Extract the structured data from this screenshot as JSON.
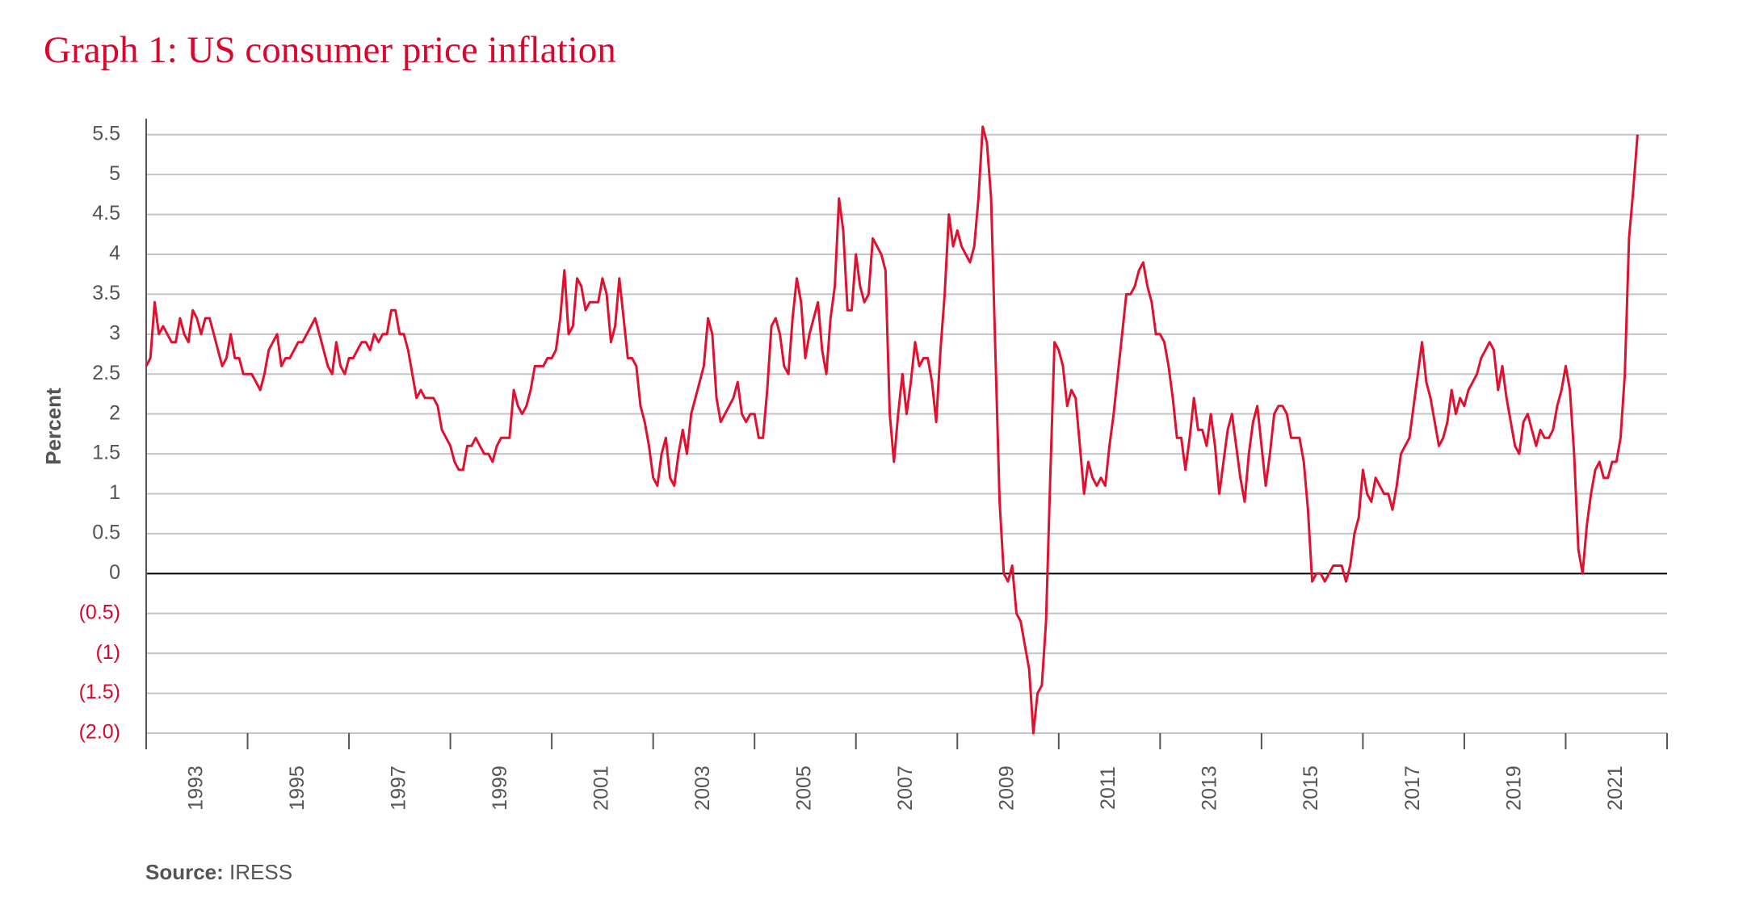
{
  "chart_data": {
    "type": "line",
    "title": "Graph 1: US consumer price inflation",
    "y_label": "Percent",
    "source_label": "Source:",
    "source": "IRESS",
    "color": "#e0102e",
    "zero_line": true,
    "grid": true,
    "xlim": [
      1992,
      2022
    ],
    "xticks": [
      1993,
      1995,
      1997,
      1999,
      2001,
      2003,
      2005,
      2007,
      2009,
      2011,
      2013,
      2015,
      2017,
      2019,
      2021
    ],
    "ylim": [
      -2,
      5.7
    ],
    "yticks": [
      5.5,
      5,
      4.5,
      4,
      3.5,
      3,
      2.5,
      2,
      1.5,
      1,
      0.5,
      0,
      {
        "value": -0.5,
        "label": "(0.5)"
      },
      {
        "value": -1,
        "label": "(1)"
      },
      {
        "value": -1.5,
        "label": "(1.5)"
      },
      {
        "value": -2,
        "label": "(2.0)"
      }
    ],
    "x": [
      1992,
      1992.083,
      1992.167,
      1992.25,
      1992.333,
      1992.417,
      1992.5,
      1992.583,
      1992.667,
      1992.75,
      1992.833,
      1992.917,
      1993,
      1993.083,
      1993.167,
      1993.25,
      1993.333,
      1993.417,
      1993.5,
      1993.583,
      1993.667,
      1993.75,
      1993.833,
      1993.917,
      1994,
      1994.083,
      1994.167,
      1994.25,
      1994.333,
      1994.417,
      1994.5,
      1994.583,
      1994.667,
      1994.75,
      1994.833,
      1994.917,
      1995,
      1995.083,
      1995.167,
      1995.25,
      1995.333,
      1995.417,
      1995.5,
      1995.583,
      1995.667,
      1995.75,
      1995.833,
      1995.917,
      1996,
      1996.083,
      1996.167,
      1996.25,
      1996.333,
      1996.417,
      1996.5,
      1996.583,
      1996.667,
      1996.75,
      1996.833,
      1996.917,
      1997,
      1997.083,
      1997.167,
      1997.25,
      1997.333,
      1997.417,
      1997.5,
      1997.583,
      1997.667,
      1997.75,
      1997.833,
      1997.917,
      1998,
      1998.083,
      1998.167,
      1998.25,
      1998.333,
      1998.417,
      1998.5,
      1998.583,
      1998.667,
      1998.75,
      1998.833,
      1998.917,
      1999,
      1999.083,
      1999.167,
      1999.25,
      1999.333,
      1999.417,
      1999.5,
      1999.583,
      1999.667,
      1999.75,
      1999.833,
      1999.917,
      2000,
      2000.083,
      2000.167,
      2000.25,
      2000.333,
      2000.417,
      2000.5,
      2000.583,
      2000.667,
      2000.75,
      2000.833,
      2000.917,
      2001,
      2001.083,
      2001.167,
      2001.25,
      2001.333,
      2001.417,
      2001.5,
      2001.583,
      2001.667,
      2001.75,
      2001.833,
      2001.917,
      2002,
      2002.083,
      2002.167,
      2002.25,
      2002.333,
      2002.417,
      2002.5,
      2002.583,
      2002.667,
      2002.75,
      2002.833,
      2002.917,
      2003,
      2003.083,
      2003.167,
      2003.25,
      2003.333,
      2003.417,
      2003.5,
      2003.583,
      2003.667,
      2003.75,
      2003.833,
      2003.917,
      2004,
      2004.083,
      2004.167,
      2004.25,
      2004.333,
      2004.417,
      2004.5,
      2004.583,
      2004.667,
      2004.75,
      2004.833,
      2004.917,
      2005,
      2005.083,
      2005.167,
      2005.25,
      2005.333,
      2005.417,
      2005.5,
      2005.583,
      2005.667,
      2005.75,
      2005.833,
      2005.917,
      2006,
      2006.083,
      2006.167,
      2006.25,
      2006.333,
      2006.417,
      2006.5,
      2006.583,
      2006.667,
      2006.75,
      2006.833,
      2006.917,
      2007,
      2007.083,
      2007.167,
      2007.25,
      2007.333,
      2007.417,
      2007.5,
      2007.583,
      2007.667,
      2007.75,
      2007.833,
      2007.917,
      2008,
      2008.083,
      2008.167,
      2008.25,
      2008.333,
      2008.417,
      2008.5,
      2008.583,
      2008.667,
      2008.75,
      2008.833,
      2008.917,
      2009,
      2009.083,
      2009.167,
      2009.25,
      2009.333,
      2009.417,
      2009.5,
      2009.583,
      2009.667,
      2009.75,
      2009.833,
      2009.917,
      2010,
      2010.083,
      2010.167,
      2010.25,
      2010.333,
      2010.417,
      2010.5,
      2010.583,
      2010.667,
      2010.75,
      2010.833,
      2010.917,
      2011,
      2011.083,
      2011.167,
      2011.25,
      2011.333,
      2011.417,
      2011.5,
      2011.583,
      2011.667,
      2011.75,
      2011.833,
      2011.917,
      2012,
      2012.083,
      2012.167,
      2012.25,
      2012.333,
      2012.417,
      2012.5,
      2012.583,
      2012.667,
      2012.75,
      2012.833,
      2012.917,
      2013,
      2013.083,
      2013.167,
      2013.25,
      2013.333,
      2013.417,
      2013.5,
      2013.583,
      2013.667,
      2013.75,
      2013.833,
      2013.917,
      2014,
      2014.083,
      2014.167,
      2014.25,
      2014.333,
      2014.417,
      2014.5,
      2014.583,
      2014.667,
      2014.75,
      2014.833,
      2014.917,
      2015,
      2015.083,
      2015.167,
      2015.25,
      2015.333,
      2015.417,
      2015.5,
      2015.583,
      2015.667,
      2015.75,
      2015.833,
      2015.917,
      2016,
      2016.083,
      2016.167,
      2016.25,
      2016.333,
      2016.417,
      2016.5,
      2016.583,
      2016.667,
      2016.75,
      2016.833,
      2016.917,
      2017,
      2017.083,
      2017.167,
      2017.25,
      2017.333,
      2017.417,
      2017.5,
      2017.583,
      2017.667,
      2017.75,
      2017.833,
      2017.917,
      2018,
      2018.083,
      2018.167,
      2018.25,
      2018.333,
      2018.417,
      2018.5,
      2018.583,
      2018.667,
      2018.75,
      2018.833,
      2018.917,
      2019,
      2019.083,
      2019.167,
      2019.25,
      2019.333,
      2019.417,
      2019.5,
      2019.583,
      2019.667,
      2019.75,
      2019.833,
      2019.917,
      2020,
      2020.083,
      2020.167,
      2020.25,
      2020.333,
      2020.417,
      2020.5,
      2020.583,
      2020.667,
      2020.75,
      2020.833,
      2020.917,
      2021,
      2021.083,
      2021.167,
      2021.25,
      2021.333,
      2021.417
    ],
    "values": [
      2.6,
      2.7,
      3.4,
      3.0,
      3.1,
      3.0,
      2.9,
      2.9,
      3.2,
      3.0,
      2.9,
      3.3,
      3.2,
      3.0,
      3.2,
      3.2,
      3.0,
      2.8,
      2.6,
      2.7,
      3.0,
      2.7,
      2.7,
      2.5,
      2.5,
      2.5,
      2.4,
      2.3,
      2.5,
      2.8,
      2.9,
      3.0,
      2.6,
      2.7,
      2.7,
      2.8,
      2.9,
      2.9,
      3.0,
      3.1,
      3.2,
      3.0,
      2.8,
      2.6,
      2.5,
      2.9,
      2.6,
      2.5,
      2.7,
      2.7,
      2.8,
      2.9,
      2.9,
      2.8,
      3.0,
      2.9,
      3.0,
      3.0,
      3.3,
      3.3,
      3.0,
      3.0,
      2.8,
      2.5,
      2.2,
      2.3,
      2.2,
      2.2,
      2.2,
      2.1,
      1.8,
      1.7,
      1.6,
      1.4,
      1.3,
      1.3,
      1.6,
      1.6,
      1.7,
      1.6,
      1.5,
      1.5,
      1.4,
      1.6,
      1.7,
      1.7,
      1.7,
      2.3,
      2.1,
      2.0,
      2.1,
      2.3,
      2.6,
      2.6,
      2.6,
      2.7,
      2.7,
      2.8,
      3.2,
      3.8,
      3.0,
      3.1,
      3.7,
      3.6,
      3.3,
      3.4,
      3.4,
      3.4,
      3.7,
      3.5,
      2.9,
      3.1,
      3.7,
      3.2,
      2.7,
      2.7,
      2.6,
      2.1,
      1.9,
      1.6,
      1.2,
      1.1,
      1.5,
      1.7,
      1.2,
      1.1,
      1.5,
      1.8,
      1.5,
      2.0,
      2.2,
      2.4,
      2.6,
      3.2,
      3.0,
      2.2,
      1.9,
      2.0,
      2.1,
      2.2,
      2.4,
      2.0,
      1.9,
      2.0,
      2.0,
      1.7,
      1.7,
      2.3,
      3.1,
      3.2,
      3.0,
      2.6,
      2.5,
      3.2,
      3.7,
      3.4,
      2.7,
      3.0,
      3.2,
      3.4,
      2.8,
      2.5,
      3.2,
      3.6,
      4.7,
      4.3,
      3.3,
      3.3,
      4.0,
      3.6,
      3.4,
      3.5,
      4.2,
      4.1,
      4.0,
      3.8,
      2.0,
      1.4,
      2.0,
      2.5,
      2.0,
      2.4,
      2.9,
      2.6,
      2.7,
      2.7,
      2.4,
      1.9,
      2.8,
      3.5,
      4.5,
      4.1,
      4.3,
      4.1,
      4.0,
      3.9,
      4.1,
      4.7,
      5.6,
      5.4,
      4.7,
      2.8,
      0.9,
      0.0,
      -0.1,
      0.1,
      -0.5,
      -0.6,
      -0.9,
      -1.2,
      -2.0,
      -1.5,
      -1.4,
      -0.6,
      1.2,
      2.9,
      2.8,
      2.6,
      2.1,
      2.3,
      2.2,
      1.6,
      1.0,
      1.4,
      1.2,
      1.1,
      1.2,
      1.1,
      1.6,
      2.0,
      2.5,
      3.0,
      3.5,
      3.5,
      3.6,
      3.8,
      3.9,
      3.6,
      3.4,
      3.0,
      3.0,
      2.9,
      2.6,
      2.2,
      1.7,
      1.7,
      1.3,
      1.7,
      2.2,
      1.8,
      1.8,
      1.6,
      2.0,
      1.6,
      1.0,
      1.4,
      1.8,
      2.0,
      1.6,
      1.2,
      0.9,
      1.5,
      1.9,
      2.1,
      1.6,
      1.1,
      1.5,
      2.0,
      2.1,
      2.1,
      2.0,
      1.7,
      1.7,
      1.7,
      1.4,
      0.8,
      -0.1,
      0.0,
      0.0,
      -0.1,
      0.0,
      0.1,
      0.1,
      0.1,
      -0.1,
      0.1,
      0.5,
      0.7,
      1.3,
      1.0,
      0.9,
      1.2,
      1.1,
      1.0,
      1.0,
      0.8,
      1.1,
      1.5,
      1.6,
      1.7,
      2.1,
      2.5,
      2.9,
      2.4,
      2.2,
      1.9,
      1.6,
      1.7,
      1.9,
      2.3,
      2.0,
      2.2,
      2.1,
      2.3,
      2.4,
      2.5,
      2.7,
      2.8,
      2.9,
      2.8,
      2.3,
      2.6,
      2.2,
      1.9,
      1.6,
      1.5,
      1.9,
      2.0,
      1.8,
      1.6,
      1.8,
      1.7,
      1.7,
      1.8,
      2.1,
      2.3,
      2.6,
      2.3,
      1.5,
      0.3,
      0.0,
      0.6,
      1.0,
      1.3,
      1.4,
      1.2,
      1.2,
      1.4,
      1.4,
      1.7,
      2.5,
      4.2,
      4.8,
      5.5
    ]
  }
}
